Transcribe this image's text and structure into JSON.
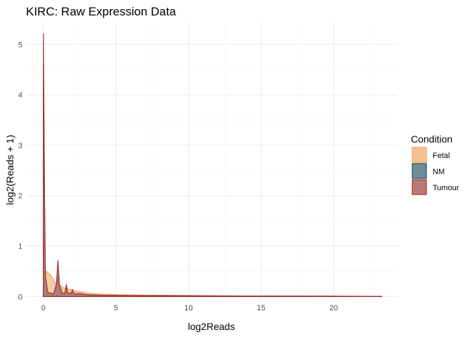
{
  "chart_data": {
    "type": "area",
    "title": "KIRC: Raw Expression Data",
    "xlabel": "log2Reads",
    "ylabel": "log2(Reads + 1)",
    "xlim": [
      -1.15,
      24.4
    ],
    "ylim": [
      -0.08,
      5.45
    ],
    "x_ticks": [
      0,
      5,
      10,
      15,
      20
    ],
    "y_ticks": [
      0,
      1,
      2,
      3,
      4,
      5
    ],
    "grid": true,
    "legend": {
      "title": "Condition",
      "position": "right"
    },
    "series": [
      {
        "name": "Fetal",
        "color": "#f0a35e",
        "fill": "#f5c393",
        "points": [
          [
            0,
            0.53
          ],
          [
            0.3,
            0.48
          ],
          [
            0.55,
            0.4
          ],
          [
            0.8,
            0.28
          ],
          [
            1.0,
            0.26
          ],
          [
            1.2,
            0.21
          ],
          [
            1.45,
            0.16
          ],
          [
            1.6,
            0.17
          ],
          [
            1.8,
            0.13
          ],
          [
            2.0,
            0.14
          ],
          [
            2.3,
            0.1
          ],
          [
            2.6,
            0.09
          ],
          [
            3.0,
            0.07
          ],
          [
            3.5,
            0.055
          ],
          [
            4.0,
            0.045
          ],
          [
            5.0,
            0.035
          ],
          [
            6.0,
            0.03
          ],
          [
            8.0,
            0.025
          ],
          [
            10.0,
            0.02
          ],
          [
            12.0,
            0.012
          ],
          [
            14.0,
            0.01
          ],
          [
            16.0,
            0.008
          ],
          [
            18.0,
            0.006
          ],
          [
            20.0,
            0.005
          ],
          [
            22.0,
            0.004
          ],
          [
            23.3,
            0.003
          ]
        ]
      },
      {
        "name": "NM",
        "color": "#1f4e5f",
        "fill": "#6c8c98",
        "points": [
          [
            0,
            4.62
          ],
          [
            0.08,
            1.8
          ],
          [
            0.14,
            0.35
          ],
          [
            0.3,
            0.08
          ],
          [
            0.7,
            0.05
          ],
          [
            0.9,
            0.15
          ],
          [
            1.0,
            0.42
          ],
          [
            1.1,
            0.15
          ],
          [
            1.3,
            0.05
          ],
          [
            1.5,
            0.06
          ],
          [
            1.58,
            0.2
          ],
          [
            1.66,
            0.06
          ],
          [
            1.9,
            0.05
          ],
          [
            2.0,
            0.1
          ],
          [
            2.1,
            0.05
          ],
          [
            2.3,
            0.04
          ],
          [
            2.5,
            0.05
          ],
          [
            3.0,
            0.03
          ],
          [
            4.0,
            0.02
          ],
          [
            6.0,
            0.015
          ],
          [
            10.0,
            0.01
          ],
          [
            15.0,
            0.006
          ],
          [
            20.0,
            0.004
          ],
          [
            23.3,
            0.002
          ]
        ]
      },
      {
        "name": "Tumour",
        "color": "#a5312e",
        "fill": "#b87a76",
        "points": [
          [
            0,
            5.22
          ],
          [
            0.08,
            2.0
          ],
          [
            0.14,
            0.4
          ],
          [
            0.3,
            0.08
          ],
          [
            0.7,
            0.05
          ],
          [
            0.9,
            0.25
          ],
          [
            1.0,
            0.72
          ],
          [
            1.1,
            0.25
          ],
          [
            1.3,
            0.06
          ],
          [
            1.5,
            0.07
          ],
          [
            1.58,
            0.24
          ],
          [
            1.66,
            0.07
          ],
          [
            1.9,
            0.06
          ],
          [
            2.0,
            0.13
          ],
          [
            2.1,
            0.06
          ],
          [
            2.3,
            0.05
          ],
          [
            2.5,
            0.06
          ],
          [
            3.0,
            0.035
          ],
          [
            4.0,
            0.025
          ],
          [
            6.0,
            0.018
          ],
          [
            10.0,
            0.012
          ],
          [
            15.0,
            0.007
          ],
          [
            20.0,
            0.004
          ],
          [
            23.3,
            0.002
          ]
        ]
      }
    ]
  }
}
